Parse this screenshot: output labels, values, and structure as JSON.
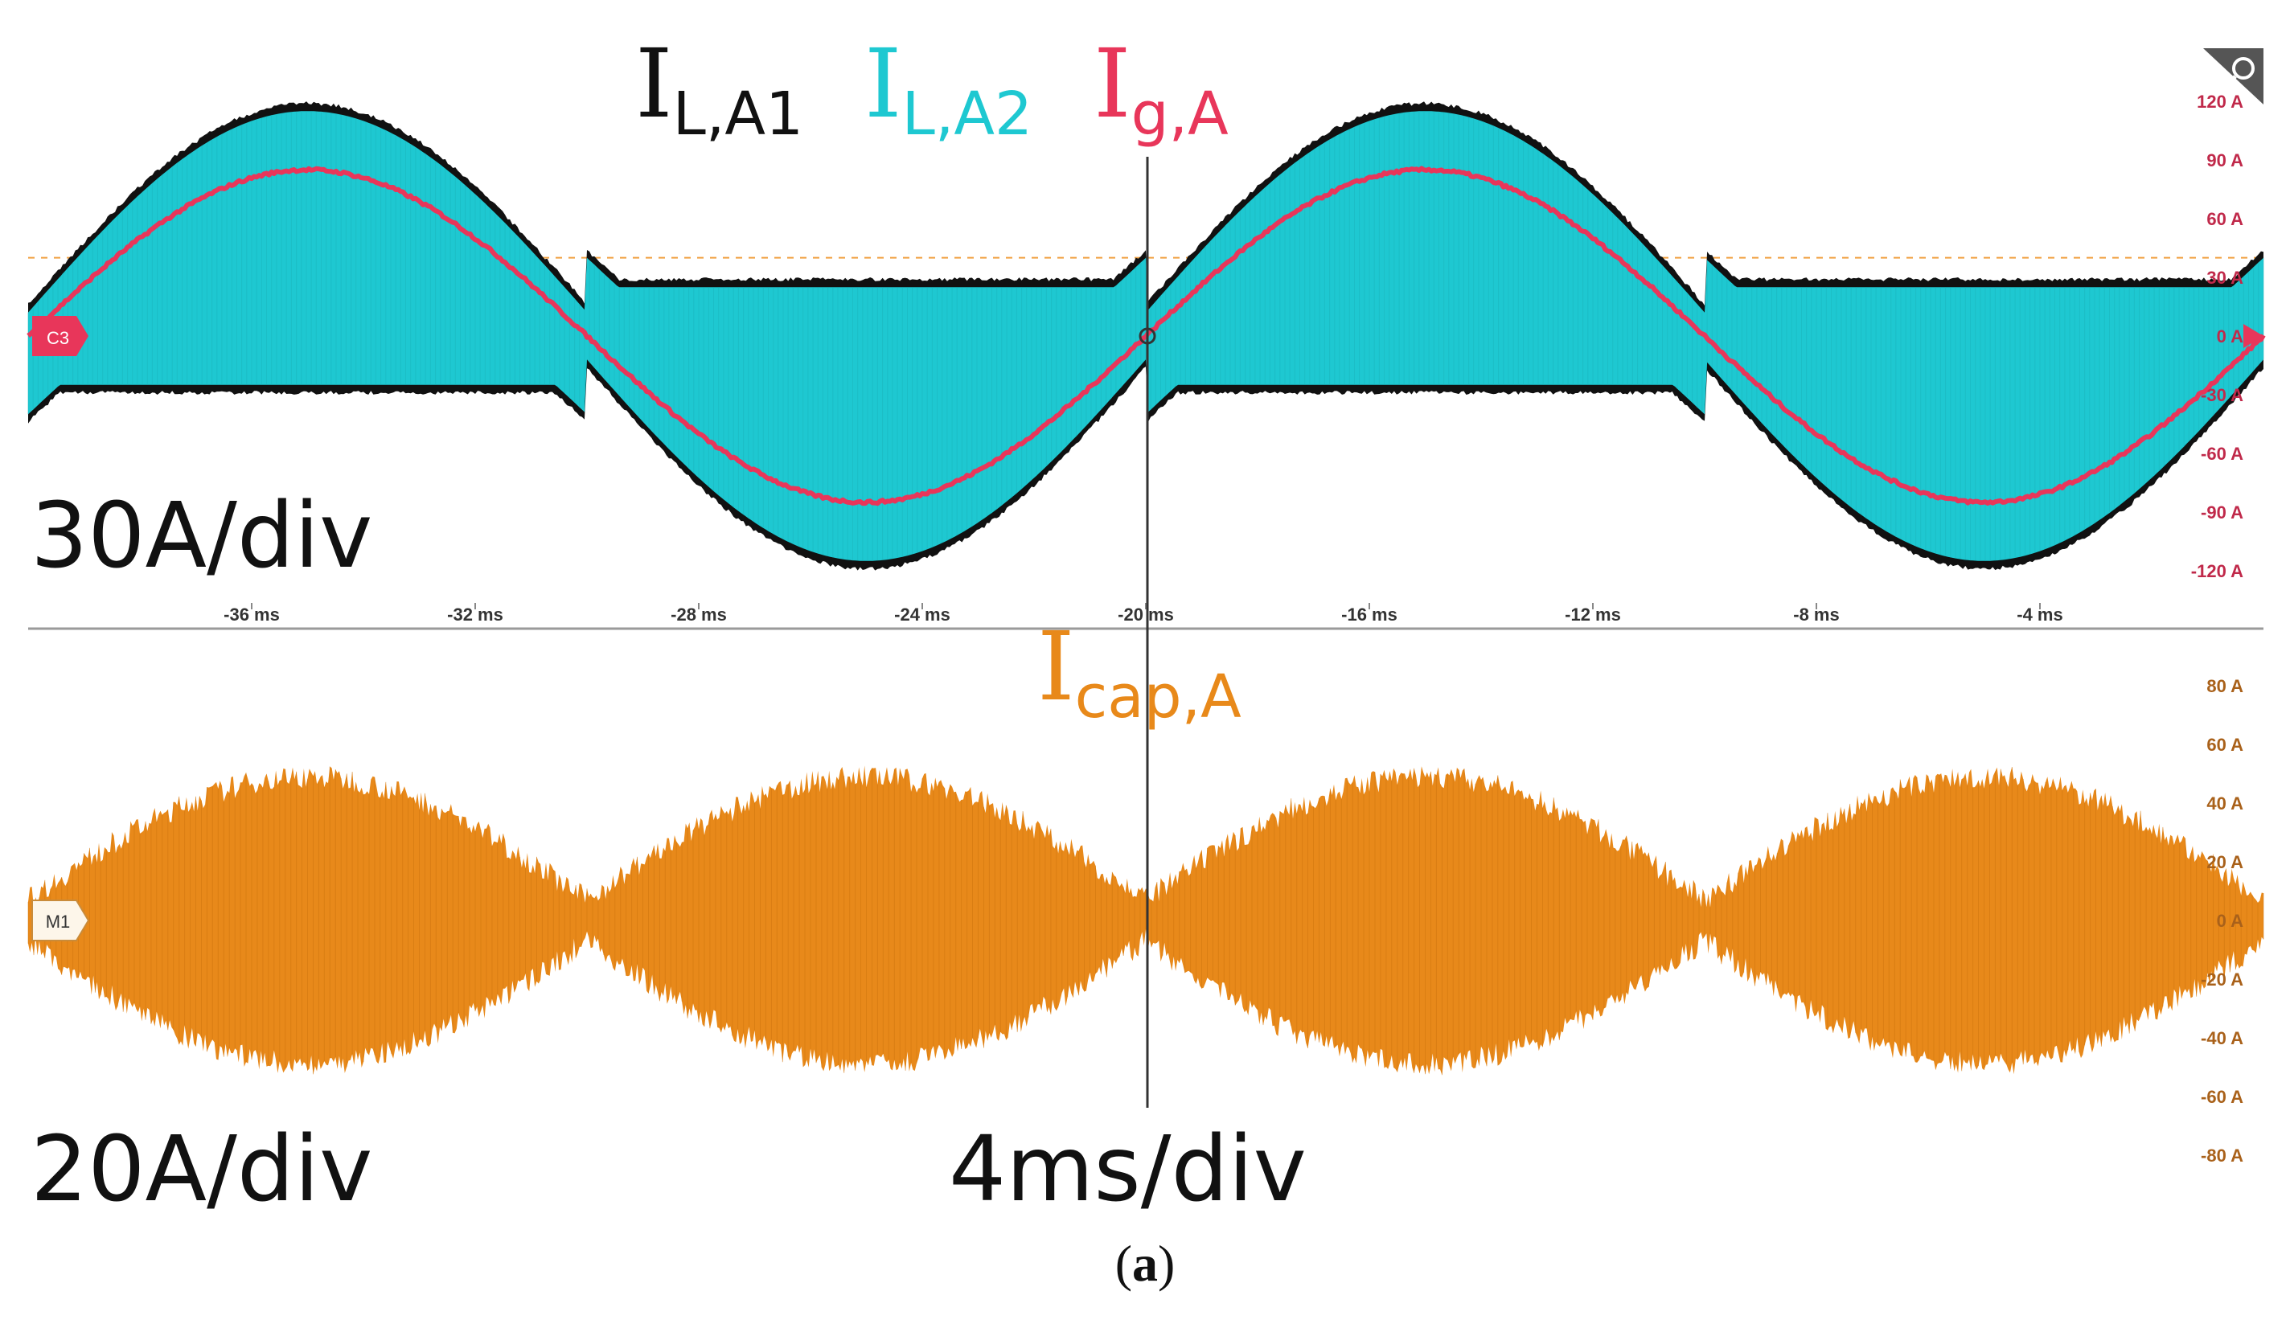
{
  "chart_data": [
    {
      "type": "line",
      "panel": "top",
      "scale_label": "30A/div",
      "legend": [
        {
          "main": "I",
          "sub": "L,A1",
          "color": "#111111"
        },
        {
          "main": "I",
          "sub": "L,A2",
          "color": "#1ec8d1"
        },
        {
          "main": "I",
          "sub": "g,A",
          "color": "#e8365a"
        }
      ],
      "channel_marker": "C3",
      "x_ticks": [
        "-36 ms",
        "-32 ms",
        "-28 ms",
        "-24 ms",
        "-20 ms",
        "-16 ms",
        "-12 ms",
        "-8 ms",
        "-4 ms"
      ],
      "y_ticks": [
        "120 A",
        "90 A",
        "60 A",
        "30 A",
        "0 A",
        "-30 A",
        "-60 A",
        "-90 A",
        "-120 A"
      ],
      "xlim": [
        -40,
        0
      ],
      "ylim": [
        -135,
        135
      ],
      "fundamental_period_ms": 20,
      "series": [
        {
          "name": "I_g,A",
          "color": "#e8365a",
          "amplitude": 85,
          "x_zero_crossing_ms": -20
        },
        {
          "name": "I_L,A2",
          "color": "#1ec8d1",
          "envelope_peak": 115,
          "envelope_min": 25
        },
        {
          "name": "I_L,A1",
          "color": "#111111",
          "envelope_peak": 118,
          "envelope_min": 27
        }
      ],
      "reference_line": {
        "value": 40,
        "color": "#f0a040"
      }
    },
    {
      "type": "area",
      "panel": "bottom",
      "scale_label": "20A/div",
      "time_scale_label": "4ms/div",
      "legend": [
        {
          "main": "I",
          "sub": "cap,A",
          "color": "#e8891a"
        }
      ],
      "channel_marker": "M1",
      "y_ticks": [
        "80 A",
        "60 A",
        "40 A",
        "20 A",
        "0 A",
        "-20 A",
        "-40 A",
        "-60 A",
        "-80 A"
      ],
      "ylim": [
        -90,
        90
      ],
      "series": [
        {
          "name": "I_cap,A",
          "color": "#e8891a",
          "envelope_peak": 45,
          "envelope_min": 3
        }
      ]
    }
  ],
  "caption": {
    "label": "a"
  }
}
